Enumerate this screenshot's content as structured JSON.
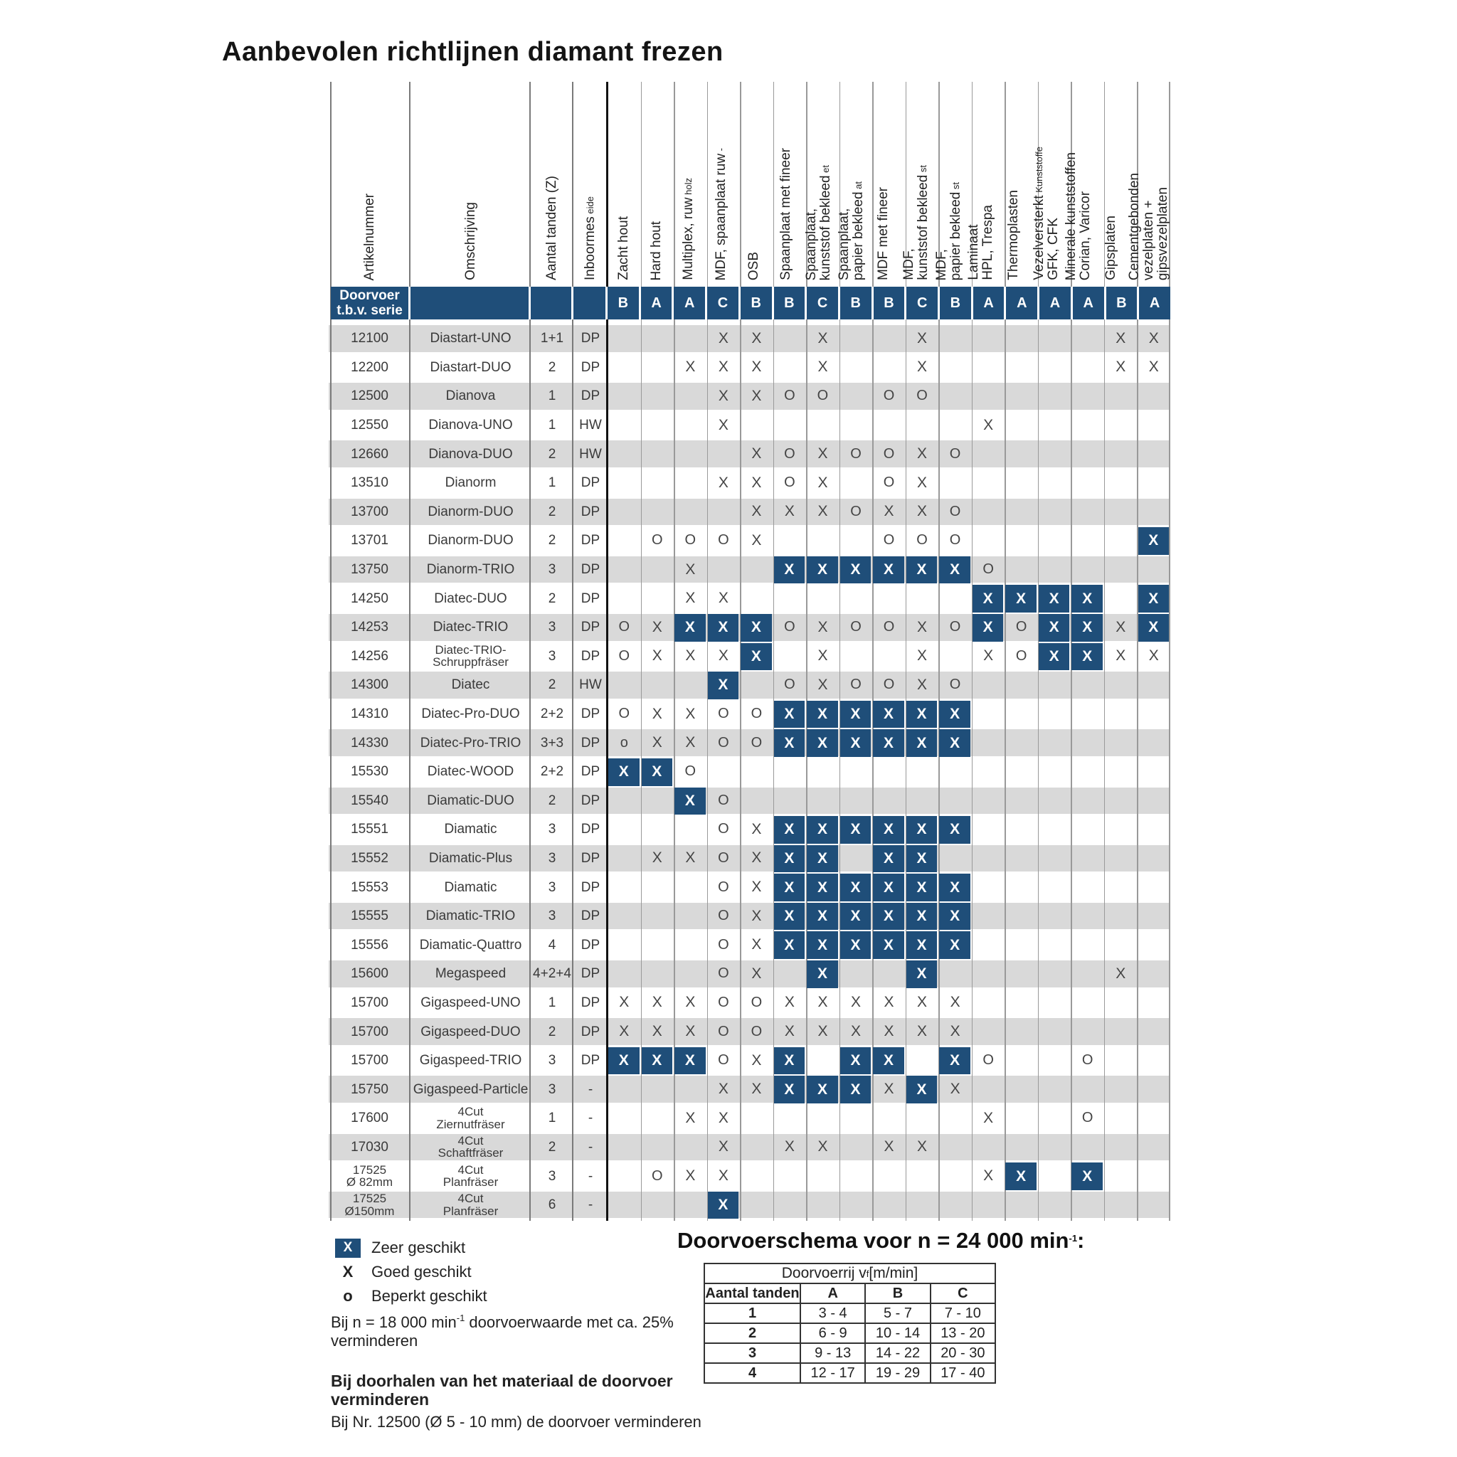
{
  "title": "Aanbevolen richtlijnen diamant frezen",
  "colors": {
    "band_blue": "#1F4E79",
    "cell_blue": "#1F4E79",
    "stripe": "#D9D9D9"
  },
  "table": {
    "label_columns": [
      {
        "lines": [
          {
            "text": "Artikelnummer"
          }
        ]
      },
      {
        "lines": [
          {
            "text": "Omschrijving"
          }
        ]
      },
      {
        "lines": [
          {
            "text": "Aantal tanden (Z)"
          }
        ]
      },
      {
        "lines": [
          {
            "text": "Inboormes",
            "small": "eide"
          }
        ]
      }
    ],
    "material_columns": [
      {
        "lines": [
          {
            "text": "Zacht hout"
          }
        ]
      },
      {
        "lines": [
          {
            "text": "Hard hout"
          }
        ]
      },
      {
        "lines": [
          {
            "text": "Multiplex, ruw",
            "small": "holz"
          }
        ]
      },
      {
        "lines": [
          {
            "text": "MDF, spaanplaat ruw",
            "small": "-"
          }
        ]
      },
      {
        "lines": [
          {
            "text": "OSB"
          }
        ]
      },
      {
        "lines": [
          {
            "text": "Spaanplaat met fineer"
          }
        ]
      },
      {
        "lines": [
          {
            "text": "Spaanplaat,"
          },
          {
            "text": "kunststof bekleed",
            "small": "et"
          }
        ]
      },
      {
        "lines": [
          {
            "text": "Spaanplaat,"
          },
          {
            "text": "papier bekleed",
            "small": "at"
          }
        ]
      },
      {
        "lines": [
          {
            "text": "MDF met fineer"
          }
        ]
      },
      {
        "lines": [
          {
            "text": "MDF,"
          },
          {
            "text": "kunststof bekleed",
            "small": "st"
          }
        ]
      },
      {
        "lines": [
          {
            "text": "MDF,"
          },
          {
            "text": "papier bekleed",
            "small": "st"
          }
        ]
      },
      {
        "lines": [
          {
            "text": "Laminaat"
          },
          {
            "text": "HPL, Trespa"
          }
        ]
      },
      {
        "lines": [
          {
            "text": "Thermoplasten"
          }
        ]
      },
      {
        "lines": [
          {
            "text": "Vezelversterkt",
            "small": "Kunststoffe"
          },
          {
            "text": "GFK, CFK"
          }
        ]
      },
      {
        "lines": [
          {
            "text": "Minerale kunststoffen"
          },
          {
            "text": "Corian, Varicor"
          }
        ]
      },
      {
        "lines": [
          {
            "text": "Gipsplaten"
          }
        ]
      },
      {
        "lines": [
          {
            "text": "Cementgebonden"
          },
          {
            "text": "vezelplaten +"
          },
          {
            "text": "gipsvezelplaten"
          }
        ]
      }
    ],
    "doorvoer": {
      "label_lines": [
        "Doorvoer",
        "t.b.v. serie"
      ],
      "letters": [
        "B",
        "A",
        "A",
        "C",
        "B",
        "B",
        "C",
        "B",
        "B",
        "C",
        "B",
        "A",
        "A",
        "A",
        "A",
        "B",
        "A"
      ]
    },
    "marker_glyphs": {
      "best": "X",
      "good": "X",
      "limited": "O",
      "limited_small": "o"
    },
    "rows": [
      {
        "artikel": [
          "12100"
        ],
        "oms": [
          "Diastart-UNO"
        ],
        "tanden": "1+1",
        "boor": "DP",
        "cells": [
          "",
          "",
          "",
          "X",
          "X",
          "",
          "X",
          "",
          "",
          "X",
          "",
          "",
          "",
          "",
          "",
          "X",
          "X"
        ]
      },
      {
        "artikel": [
          "12200"
        ],
        "oms": [
          "Diastart-DUO"
        ],
        "tanden": "2",
        "boor": "DP",
        "cells": [
          "",
          "",
          "X",
          "X",
          "X",
          "",
          "X",
          "",
          "",
          "X",
          "",
          "",
          "",
          "",
          "",
          "X",
          "X"
        ]
      },
      {
        "artikel": [
          "12500"
        ],
        "oms": [
          "Dianova"
        ],
        "tanden": "1",
        "boor": "DP",
        "cells": [
          "",
          "",
          "",
          "X",
          "X",
          "O",
          "O",
          "",
          "O",
          "O",
          "",
          "",
          "",
          "",
          "",
          "",
          ""
        ]
      },
      {
        "artikel": [
          "12550"
        ],
        "oms": [
          "Dianova-UNO"
        ],
        "tanden": "1",
        "boor": "HW",
        "cells": [
          "",
          "",
          "",
          "X",
          "",
          "",
          "",
          "",
          "",
          "",
          "",
          "X",
          "",
          "",
          "",
          "",
          ""
        ]
      },
      {
        "artikel": [
          "12660"
        ],
        "oms": [
          "Dianova-DUO"
        ],
        "tanden": "2",
        "boor": "HW",
        "cells": [
          "",
          "",
          "",
          "",
          "X",
          "O",
          "X",
          "O",
          "O",
          "X",
          "O",
          "",
          "",
          "",
          "",
          "",
          ""
        ]
      },
      {
        "artikel": [
          "13510"
        ],
        "oms": [
          "Dianorm"
        ],
        "tanden": "1",
        "boor": "DP",
        "cells": [
          "",
          "",
          "",
          "X",
          "X",
          "O",
          "X",
          "",
          "O",
          "X",
          "",
          "",
          "",
          "",
          "",
          "",
          ""
        ]
      },
      {
        "artikel": [
          "13700"
        ],
        "oms": [
          "Dianorm-DUO"
        ],
        "tanden": "2",
        "boor": "DP",
        "cells": [
          "",
          "",
          "",
          "",
          "X",
          "X",
          "X",
          "O",
          "X",
          "X",
          "O",
          "",
          "",
          "",
          "",
          "",
          ""
        ]
      },
      {
        "artikel": [
          "13701"
        ],
        "oms": [
          "Dianorm-DUO"
        ],
        "tanden": "2",
        "boor": "DP",
        "cells": [
          "",
          "O",
          "O",
          "O",
          "X",
          "",
          "",
          "",
          "O",
          "O",
          "O",
          "",
          "",
          "",
          "",
          "",
          "B"
        ]
      },
      {
        "artikel": [
          "13750"
        ],
        "oms": [
          "Dianorm-TRIO"
        ],
        "tanden": "3",
        "boor": "DP",
        "cells": [
          "",
          "",
          "X",
          "",
          "",
          "B",
          "B",
          "B",
          "B",
          "B",
          "B",
          "O",
          "",
          "",
          "",
          "",
          ""
        ]
      },
      {
        "artikel": [
          "14250"
        ],
        "oms": [
          "Diatec-DUO"
        ],
        "tanden": "2",
        "boor": "DP",
        "cells": [
          "",
          "",
          "X",
          "X",
          "",
          "",
          "",
          "",
          "",
          "",
          "",
          "B",
          "B",
          "B",
          "B",
          "",
          "B"
        ]
      },
      {
        "artikel": [
          "14253"
        ],
        "oms": [
          "Diatec-TRIO"
        ],
        "tanden": "3",
        "boor": "DP",
        "cells": [
          "O",
          "X",
          "B",
          "B",
          "B",
          "O",
          "X",
          "O",
          "O",
          "X",
          "O",
          "B",
          "O",
          "B",
          "B",
          "X",
          "B"
        ]
      },
      {
        "artikel": [
          "14256"
        ],
        "oms": [
          "Diatec-TRIO-",
          "Schruppfräser"
        ],
        "tanden": "3",
        "boor": "DP",
        "cells": [
          "O",
          "X",
          "X",
          "X",
          "B",
          "",
          "X",
          "",
          "",
          "X",
          "",
          "X",
          "O",
          "B",
          "B",
          "X",
          "X"
        ]
      },
      {
        "artikel": [
          "14300"
        ],
        "oms": [
          "Diatec"
        ],
        "tanden": "2",
        "boor": "HW",
        "cells": [
          "",
          "",
          "",
          "B",
          "",
          "O",
          "X",
          "O",
          "O",
          "X",
          "O",
          "",
          "",
          "",
          "",
          "",
          ""
        ]
      },
      {
        "artikel": [
          "14310"
        ],
        "oms": [
          "Diatec-Pro-DUO"
        ],
        "tanden": "2+2",
        "boor": "DP",
        "cells": [
          "O",
          "X",
          "X",
          "O",
          "O",
          "B",
          "B",
          "B",
          "B",
          "B",
          "B",
          "",
          "",
          "",
          "",
          "",
          ""
        ]
      },
      {
        "artikel": [
          "14330"
        ],
        "oms": [
          "Diatec-Pro-TRIO"
        ],
        "tanden": "3+3",
        "boor": "DP",
        "cells": [
          "o",
          "X",
          "X",
          "O",
          "O",
          "B",
          "B",
          "B",
          "B",
          "B",
          "B",
          "",
          "",
          "",
          "",
          "",
          ""
        ]
      },
      {
        "artikel": [
          "15530"
        ],
        "oms": [
          "Diatec-WOOD"
        ],
        "tanden": "2+2",
        "boor": "DP",
        "cells": [
          "B",
          "B",
          "O",
          "",
          "",
          "",
          "",
          "",
          "",
          "",
          "",
          "",
          "",
          "",
          "",
          "",
          ""
        ]
      },
      {
        "artikel": [
          "15540"
        ],
        "oms": [
          "Diamatic-DUO"
        ],
        "tanden": "2",
        "boor": "DP",
        "cells": [
          "",
          "",
          "B",
          "O",
          "",
          "",
          "",
          "",
          "",
          "",
          "",
          "",
          "",
          "",
          "",
          "",
          ""
        ]
      },
      {
        "artikel": [
          "15551"
        ],
        "oms": [
          "Diamatic"
        ],
        "tanden": "3",
        "boor": "DP",
        "cells": [
          "",
          "",
          "",
          "O",
          "X",
          "B",
          "B",
          "B",
          "B",
          "B",
          "B",
          "",
          "",
          "",
          "",
          "",
          ""
        ]
      },
      {
        "artikel": [
          "15552"
        ],
        "oms": [
          "Diamatic-Plus"
        ],
        "tanden": "3",
        "boor": "DP",
        "cells": [
          "",
          "X",
          "X",
          "O",
          "X",
          "B",
          "B",
          "",
          "B",
          "B",
          "",
          "",
          "",
          "",
          "",
          "",
          ""
        ]
      },
      {
        "artikel": [
          "15553"
        ],
        "oms": [
          "Diamatic"
        ],
        "tanden": "3",
        "boor": "DP",
        "cells": [
          "",
          "",
          "",
          "O",
          "X",
          "B",
          "B",
          "B",
          "B",
          "B",
          "B",
          "",
          "",
          "",
          "",
          "",
          ""
        ]
      },
      {
        "artikel": [
          "15555"
        ],
        "oms": [
          "Diamatic-TRIO"
        ],
        "tanden": "3",
        "boor": "DP",
        "cells": [
          "",
          "",
          "",
          "O",
          "X",
          "B",
          "B",
          "B",
          "B",
          "B",
          "B",
          "",
          "",
          "",
          "",
          "",
          ""
        ]
      },
      {
        "artikel": [
          "15556"
        ],
        "oms": [
          "Diamatic-Quattro"
        ],
        "tanden": "4",
        "boor": "DP",
        "cells": [
          "",
          "",
          "",
          "O",
          "X",
          "B",
          "B",
          "B",
          "B",
          "B",
          "B",
          "",
          "",
          "",
          "",
          "",
          ""
        ]
      },
      {
        "artikel": [
          "15600"
        ],
        "oms": [
          "Megaspeed"
        ],
        "tanden": "4+2+4",
        "boor": "DP",
        "cells": [
          "",
          "",
          "",
          "O",
          "X",
          "",
          "B",
          "",
          "",
          "B",
          "",
          "",
          "",
          "",
          "",
          "X",
          ""
        ]
      },
      {
        "artikel": [
          "15700"
        ],
        "oms": [
          "Gigaspeed-UNO"
        ],
        "tanden": "1",
        "boor": "DP",
        "cells": [
          "X",
          "X",
          "X",
          "O",
          "O",
          "X",
          "X",
          "X",
          "X",
          "X",
          "X",
          "",
          "",
          "",
          "",
          "",
          ""
        ]
      },
      {
        "artikel": [
          "15700"
        ],
        "oms": [
          "Gigaspeed-DUO"
        ],
        "tanden": "2",
        "boor": "DP",
        "cells": [
          "X",
          "X",
          "X",
          "O",
          "O",
          "X",
          "X",
          "X",
          "X",
          "X",
          "X",
          "",
          "",
          "",
          "",
          "",
          ""
        ]
      },
      {
        "artikel": [
          "15700"
        ],
        "oms": [
          "Gigaspeed-TRIO"
        ],
        "tanden": "3",
        "boor": "DP",
        "cells": [
          "B",
          "B",
          "B",
          "O",
          "X",
          "B",
          "",
          "B",
          "B",
          "",
          "B",
          "O",
          "",
          "",
          "O",
          "",
          ""
        ]
      },
      {
        "artikel": [
          "15750"
        ],
        "oms": [
          "Gigaspeed-Particle"
        ],
        "tanden": "3",
        "boor": "-",
        "cells": [
          "",
          "",
          "",
          "X",
          "X",
          "B",
          "B",
          "B",
          "X",
          "B",
          "X",
          "",
          "",
          "",
          "",
          "",
          ""
        ]
      },
      {
        "artikel": [
          "17600"
        ],
        "oms": [
          "4Cut",
          "Ziernutfräser"
        ],
        "tanden": "1",
        "boor": "-",
        "cells": [
          "",
          "",
          "X",
          "X",
          "",
          "",
          "",
          "",
          "",
          "",
          "",
          "X",
          "",
          "",
          "O",
          "",
          ""
        ]
      },
      {
        "artikel": [
          "17030"
        ],
        "oms": [
          "4Cut",
          "Schaftfräser"
        ],
        "tanden": "2",
        "boor": "-",
        "cells": [
          "",
          "",
          "",
          "X",
          "",
          "X",
          "X",
          "",
          "X",
          "X",
          "",
          "",
          "",
          "",
          "",
          "",
          ""
        ]
      },
      {
        "artikel": [
          "17525",
          "Ø 82mm"
        ],
        "oms": [
          "4Cut",
          "Planfräser"
        ],
        "tanden": "3",
        "boor": "-",
        "cells": [
          "",
          "O",
          "X",
          "X",
          "",
          "",
          "",
          "",
          "",
          "",
          "",
          "X",
          "B",
          "",
          "B",
          "",
          ""
        ]
      },
      {
        "artikel": [
          "17525",
          "Ø150mm"
        ],
        "oms": [
          "4Cut",
          "Planfräser"
        ],
        "tanden": "6",
        "boor": "-",
        "cells": [
          "",
          "",
          "",
          "B",
          "",
          "",
          "",
          "",
          "",
          "",
          "",
          "",
          "",
          "",
          "",
          "",
          ""
        ]
      }
    ]
  },
  "legend": [
    {
      "marker": "X",
      "style": "box",
      "label": "Zeer geschikt"
    },
    {
      "marker": "X",
      "style": "plain",
      "label": "Goed geschikt"
    },
    {
      "marker": "o",
      "style": "plain",
      "label": "Beperkt geschikt"
    }
  ],
  "notes": [
    {
      "bold": false,
      "segments": [
        {
          "t": "Bij  n = 18 000 min"
        },
        {
          "t": "-1",
          "sup": true
        },
        {
          "t": "  doorvoerwaarde met ca. 25% verminderen"
        }
      ]
    },
    {
      "bold": true,
      "segments": [
        {
          "t": "Bij doorhalen van het materiaal de doorvoer verminderen"
        }
      ]
    },
    {
      "bold": false,
      "segments": [
        {
          "t": "Bij Nr. 12500 (Ø 5 - 10 mm) de doorvoer verminderen"
        }
      ]
    }
  ],
  "schema": {
    "title_segments": [
      {
        "t": "Doorvoerschema voor  n = 24 000 min"
      },
      {
        "t": "-1",
        "sup": true
      },
      {
        "t": ":"
      }
    ],
    "span_header_segments": [
      {
        "t": "Doorvoerrij  v"
      },
      {
        "t": "f",
        "sub": true
      },
      {
        "t": " [m/min]"
      }
    ],
    "columns": [
      "Aantal tanden",
      "A",
      "B",
      "C"
    ],
    "rows": [
      [
        "1",
        "3 - 4",
        "5 - 7",
        "7 - 10"
      ],
      [
        "2",
        "6 - 9",
        "10 - 14",
        "13 - 20"
      ],
      [
        "3",
        "9 - 13",
        "14 - 22",
        "20 - 30"
      ],
      [
        "4",
        "12 - 17",
        "19 - 29",
        "17 - 40"
      ]
    ]
  }
}
